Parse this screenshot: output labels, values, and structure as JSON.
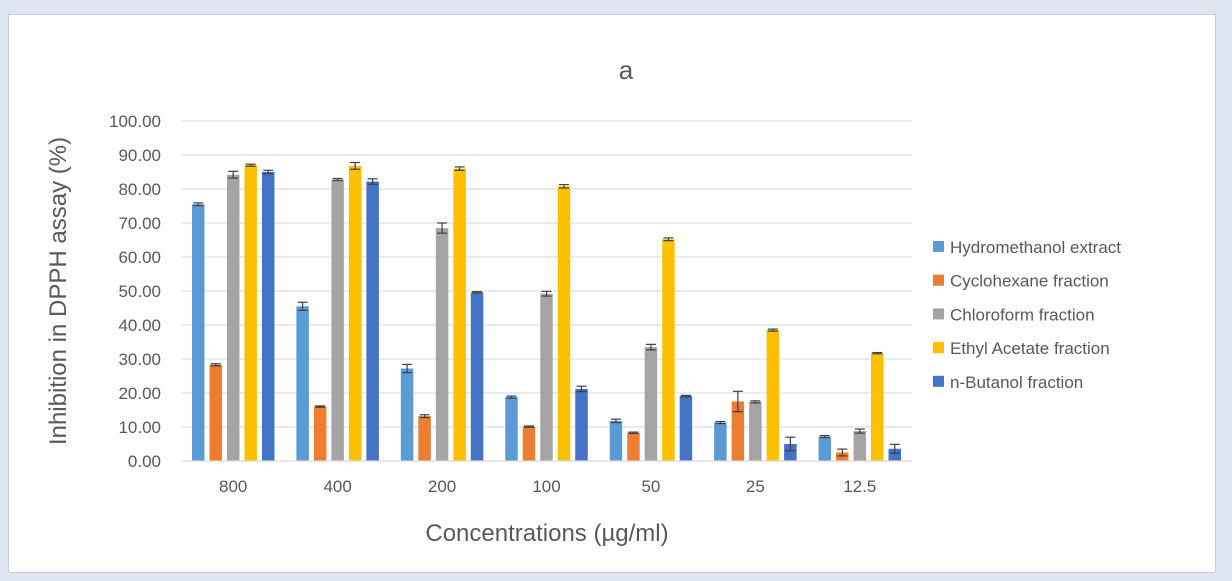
{
  "chart_data": {
    "type": "bar",
    "title": "a",
    "xlabel": "Concentrations (µg/ml)",
    "ylabel": "Inhibition in DPPH assay (%)",
    "ylim": [
      0,
      100
    ],
    "yticks": [
      "0.00",
      "10.00",
      "20.00",
      "30.00",
      "40.00",
      "50.00",
      "60.00",
      "70.00",
      "80.00",
      "90.00",
      "100.00"
    ],
    "categories": [
      "800",
      "400",
      "200",
      "100",
      "50",
      "25",
      "12.5"
    ],
    "grid": true,
    "legend_position": "right",
    "series": [
      {
        "name": "Hydromethanol extract",
        "color": "#5b9bd5",
        "values": [
          75.5,
          45.5,
          27.2,
          18.8,
          11.8,
          11.3,
          7.2
        ],
        "errors": [
          0.4,
          1.2,
          1.2,
          0.3,
          0.5,
          0.3,
          0.3
        ]
      },
      {
        "name": "Cyclohexane fraction",
        "color": "#ed7d31",
        "values": [
          28.3,
          16.0,
          13.2,
          10.1,
          8.3,
          17.5,
          2.5
        ],
        "errors": [
          0.3,
          0.2,
          0.4,
          0.2,
          0.2,
          3.0,
          1.0
        ]
      },
      {
        "name": "Chloroform fraction",
        "color": "#a5a5a5",
        "values": [
          84.2,
          82.8,
          68.5,
          49.2,
          33.5,
          17.4,
          8.8
        ],
        "errors": [
          1.0,
          0.3,
          1.5,
          0.7,
          0.8,
          0.3,
          0.6
        ]
      },
      {
        "name": "Ethyl Acetate fraction",
        "color": "#ffc000",
        "values": [
          87.0,
          86.8,
          86.0,
          80.8,
          65.2,
          38.5,
          31.7
        ],
        "errors": [
          0.3,
          1.0,
          0.5,
          0.5,
          0.4,
          0.3,
          0.2
        ]
      },
      {
        "name": "n-Butanol fraction",
        "color": "#4472c4",
        "values": [
          85.0,
          82.2,
          49.6,
          21.2,
          19.1,
          5.0,
          3.6
        ],
        "errors": [
          0.5,
          0.8,
          0.2,
          0.8,
          0.2,
          2.0,
          1.3
        ]
      }
    ]
  }
}
